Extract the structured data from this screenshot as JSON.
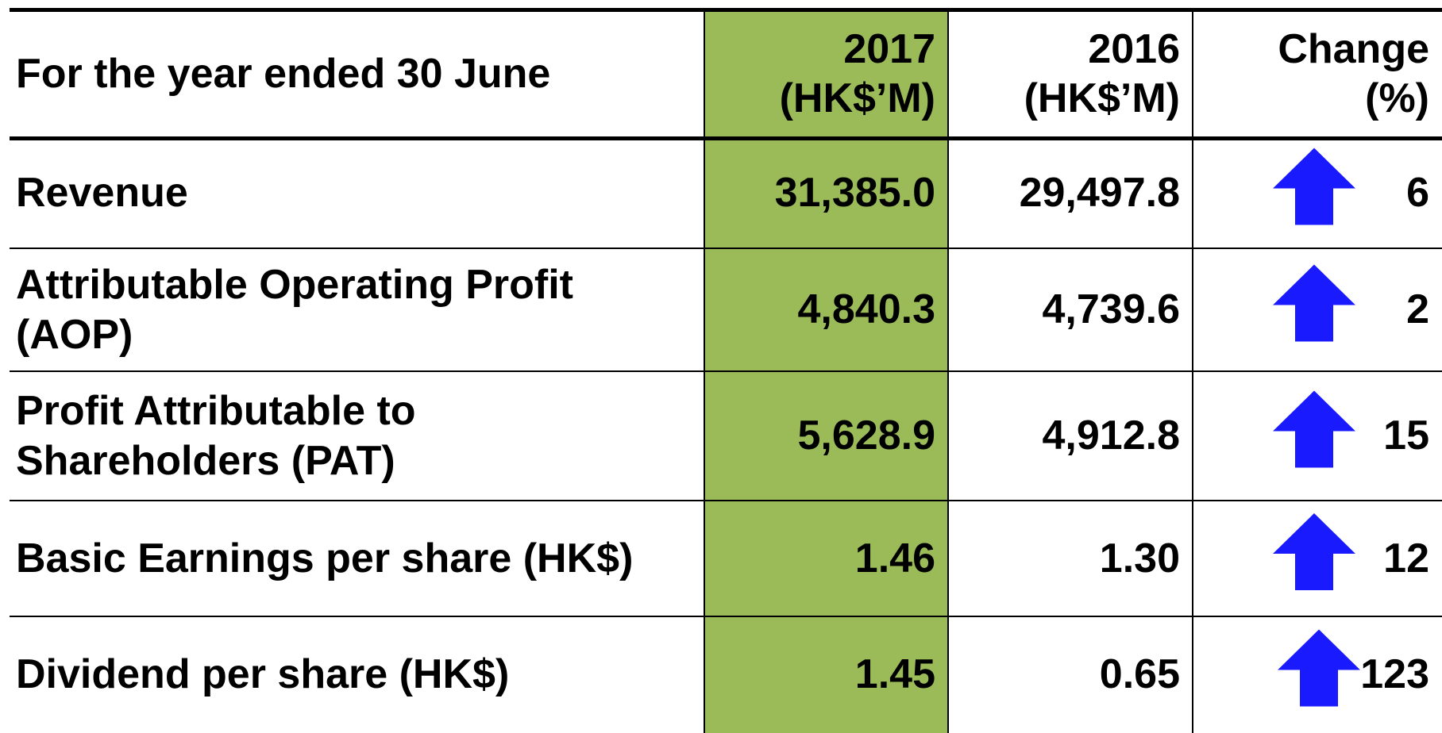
{
  "table": {
    "header": [
      [
        "For the year ended 30 June"
      ],
      [
        "2017",
        "(HK$’M)"
      ],
      [
        "2016",
        "(HK$’M)"
      ],
      [
        "Change",
        "(%)"
      ]
    ],
    "rows": [
      [
        [
          "Revenue"
        ],
        "31,385.0",
        "29,497.8",
        "6"
      ],
      [
        [
          "Attributable Operating Profit",
          "(AOP)"
        ],
        "4,840.3",
        "4,739.6",
        "2"
      ],
      [
        [
          "Profit Attributable to",
          "Shareholders (PAT)"
        ],
        "5,628.9",
        "4,912.8",
        "15"
      ],
      [
        [
          "Basic Earnings per share (HK$)"
        ],
        "1.46",
        "1.30",
        "12"
      ],
      [
        [
          "Dividend per share (HK$)"
        ],
        "1.45",
        "0.65",
        "123"
      ]
    ]
  }
}
